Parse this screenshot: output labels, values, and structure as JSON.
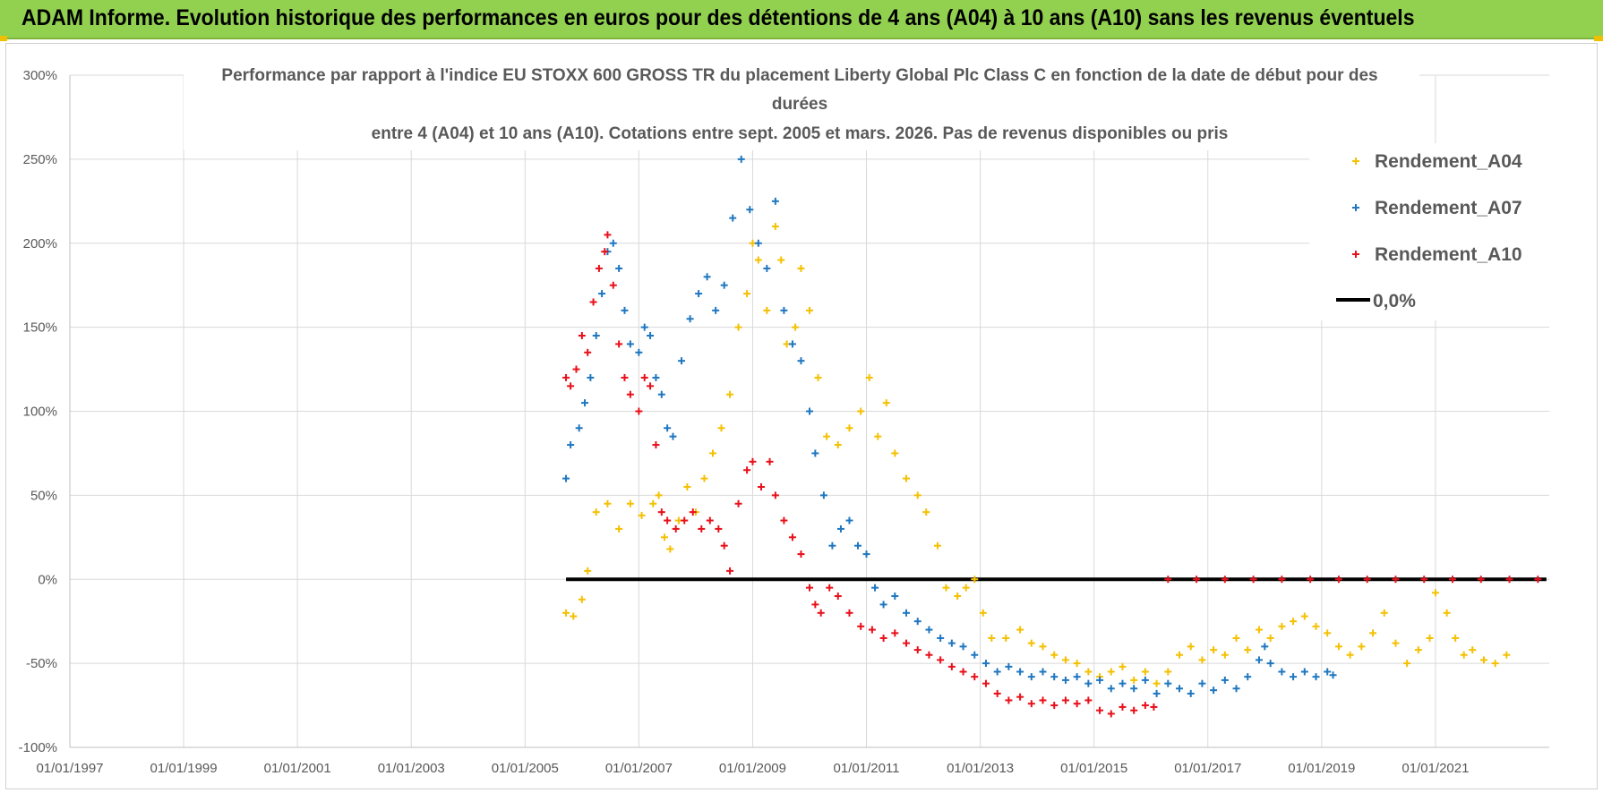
{
  "banner": {
    "text": "ADAM Informe. Evolution historique des performances en euros pour des détentions de 4 ans (A04) à 10 ans (A10) sans les revenus éventuels"
  },
  "chart_data": {
    "type": "scatter",
    "title": [
      "Performance par rapport à l'indice EU STOXX 600 GROSS TR  du placement Liberty Global Plc Class C en fonction de la date de début pour des",
      "durées",
      "entre 4 (A04) et 10 ans (A10).  Cotations entre sept. 2005 et mars. 2026.  Pas de revenus disponibles ou pris"
    ],
    "xlabel": "",
    "ylabel": "",
    "xlim": [
      1997.0,
      2023.0
    ],
    "ylim": [
      -100,
      300
    ],
    "x_ticks": [
      1997,
      1999,
      2001,
      2003,
      2005,
      2007,
      2009,
      2011,
      2013,
      2015,
      2017,
      2019,
      2021
    ],
    "x_tick_labels": [
      "01/01/1997",
      "01/01/1999",
      "01/01/2001",
      "01/01/2003",
      "01/01/2005",
      "01/01/2007",
      "01/01/2009",
      "01/01/2011",
      "01/01/2013",
      "01/01/2015",
      "01/01/2017",
      "01/01/2019",
      "01/01/2021"
    ],
    "y_ticks": [
      -100,
      -50,
      0,
      50,
      100,
      150,
      200,
      250,
      300
    ],
    "y_tick_labels": [
      "-100%",
      "-50%",
      "0%",
      "50%",
      "100%",
      "150%",
      "200%",
      "250%",
      "300%"
    ],
    "grid": true,
    "legend_position": "top-right",
    "series": [
      {
        "name": "Rendement_A04",
        "color": "#f5c000",
        "marker": "+",
        "points": [
          [
            2005.72,
            -20
          ],
          [
            2005.85,
            -22
          ],
          [
            2006.0,
            -12
          ],
          [
            2006.1,
            5
          ],
          [
            2006.25,
            40
          ],
          [
            2006.45,
            45
          ],
          [
            2006.65,
            30
          ],
          [
            2006.85,
            45
          ],
          [
            2007.05,
            38
          ],
          [
            2007.25,
            45
          ],
          [
            2007.35,
            50
          ],
          [
            2007.45,
            25
          ],
          [
            2007.55,
            18
          ],
          [
            2007.7,
            35
          ],
          [
            2007.85,
            55
          ],
          [
            2008.0,
            40
          ],
          [
            2008.15,
            60
          ],
          [
            2008.3,
            75
          ],
          [
            2008.45,
            90
          ],
          [
            2008.6,
            110
          ],
          [
            2008.75,
            150
          ],
          [
            2008.9,
            170
          ],
          [
            2009.0,
            200
          ],
          [
            2009.1,
            190
          ],
          [
            2009.25,
            160
          ],
          [
            2009.4,
            210
          ],
          [
            2009.5,
            190
          ],
          [
            2009.6,
            140
          ],
          [
            2009.75,
            150
          ],
          [
            2009.85,
            185
          ],
          [
            2010.0,
            160
          ],
          [
            2010.15,
            120
          ],
          [
            2010.3,
            85
          ],
          [
            2010.5,
            80
          ],
          [
            2010.7,
            90
          ],
          [
            2010.9,
            100
          ],
          [
            2011.05,
            120
          ],
          [
            2011.2,
            85
          ],
          [
            2011.35,
            105
          ],
          [
            2011.5,
            75
          ],
          [
            2011.7,
            60
          ],
          [
            2011.9,
            50
          ],
          [
            2012.05,
            40
          ],
          [
            2012.25,
            20
          ],
          [
            2012.4,
            -5
          ],
          [
            2012.6,
            -10
          ],
          [
            2012.75,
            -5
          ],
          [
            2012.9,
            0
          ],
          [
            2013.05,
            -20
          ],
          [
            2013.2,
            -35
          ],
          [
            2013.45,
            -35
          ],
          [
            2013.7,
            -30
          ],
          [
            2013.9,
            -38
          ],
          [
            2014.1,
            -40
          ],
          [
            2014.3,
            -45
          ],
          [
            2014.5,
            -48
          ],
          [
            2014.7,
            -50
          ],
          [
            2014.9,
            -55
          ],
          [
            2015.1,
            -58
          ],
          [
            2015.3,
            -55
          ],
          [
            2015.5,
            -52
          ],
          [
            2015.7,
            -60
          ],
          [
            2015.9,
            -55
          ],
          [
            2016.1,
            -62
          ],
          [
            2016.3,
            -55
          ],
          [
            2016.5,
            -45
          ],
          [
            2016.7,
            -40
          ],
          [
            2016.9,
            -48
          ],
          [
            2017.1,
            -42
          ],
          [
            2017.3,
            -45
          ],
          [
            2017.5,
            -35
          ],
          [
            2017.7,
            -42
          ],
          [
            2017.9,
            -30
          ],
          [
            2018.1,
            -35
          ],
          [
            2018.3,
            -28
          ],
          [
            2018.5,
            -25
          ],
          [
            2018.7,
            -22
          ],
          [
            2018.9,
            -28
          ],
          [
            2019.1,
            -32
          ],
          [
            2019.3,
            -40
          ],
          [
            2019.5,
            -45
          ],
          [
            2019.7,
            -40
          ],
          [
            2019.9,
            -32
          ],
          [
            2020.1,
            -20
          ],
          [
            2020.3,
            -38
          ],
          [
            2020.5,
            -50
          ],
          [
            2020.7,
            -42
          ],
          [
            2020.9,
            -35
          ],
          [
            2021.0,
            -8
          ],
          [
            2021.2,
            -20
          ],
          [
            2021.35,
            -35
          ],
          [
            2021.5,
            -45
          ],
          [
            2021.65,
            -42
          ],
          [
            2021.85,
            -48
          ],
          [
            2022.05,
            -50
          ],
          [
            2022.25,
            -45
          ]
        ]
      },
      {
        "name": "Rendement_A07",
        "color": "#1f77c0",
        "marker": "+",
        "points": [
          [
            2005.72,
            60
          ],
          [
            2005.8,
            80
          ],
          [
            2005.95,
            90
          ],
          [
            2006.05,
            105
          ],
          [
            2006.15,
            120
          ],
          [
            2006.25,
            145
          ],
          [
            2006.35,
            170
          ],
          [
            2006.45,
            195
          ],
          [
            2006.55,
            200
          ],
          [
            2006.65,
            185
          ],
          [
            2006.75,
            160
          ],
          [
            2006.85,
            140
          ],
          [
            2007.0,
            135
          ],
          [
            2007.1,
            150
          ],
          [
            2007.2,
            145
          ],
          [
            2007.3,
            120
          ],
          [
            2007.4,
            110
          ],
          [
            2007.5,
            90
          ],
          [
            2007.6,
            85
          ],
          [
            2007.75,
            130
          ],
          [
            2007.9,
            155
          ],
          [
            2008.05,
            170
          ],
          [
            2008.2,
            180
          ],
          [
            2008.35,
            160
          ],
          [
            2008.5,
            175
          ],
          [
            2008.65,
            215
          ],
          [
            2008.8,
            250
          ],
          [
            2008.95,
            220
          ],
          [
            2009.1,
            200
          ],
          [
            2009.25,
            185
          ],
          [
            2009.4,
            225
          ],
          [
            2009.55,
            160
          ],
          [
            2009.7,
            140
          ],
          [
            2009.85,
            130
          ],
          [
            2010.0,
            100
          ],
          [
            2010.1,
            75
          ],
          [
            2010.25,
            50
          ],
          [
            2010.4,
            20
          ],
          [
            2010.55,
            30
          ],
          [
            2010.7,
            35
          ],
          [
            2010.85,
            20
          ],
          [
            2011.0,
            15
          ],
          [
            2011.15,
            -5
          ],
          [
            2011.3,
            -15
          ],
          [
            2011.5,
            -10
          ],
          [
            2011.7,
            -20
          ],
          [
            2011.9,
            -25
          ],
          [
            2012.1,
            -30
          ],
          [
            2012.3,
            -35
          ],
          [
            2012.5,
            -38
          ],
          [
            2012.7,
            -40
          ],
          [
            2012.9,
            -45
          ],
          [
            2013.1,
            -50
          ],
          [
            2013.3,
            -55
          ],
          [
            2013.5,
            -52
          ],
          [
            2013.7,
            -55
          ],
          [
            2013.9,
            -58
          ],
          [
            2014.1,
            -55
          ],
          [
            2014.3,
            -58
          ],
          [
            2014.5,
            -60
          ],
          [
            2014.7,
            -58
          ],
          [
            2014.9,
            -62
          ],
          [
            2015.1,
            -60
          ],
          [
            2015.3,
            -65
          ],
          [
            2015.5,
            -62
          ],
          [
            2015.7,
            -65
          ],
          [
            2015.9,
            -60
          ],
          [
            2016.1,
            -68
          ],
          [
            2016.3,
            -62
          ],
          [
            2016.5,
            -65
          ],
          [
            2016.7,
            -68
          ],
          [
            2016.9,
            -62
          ],
          [
            2017.1,
            -66
          ],
          [
            2017.3,
            -60
          ],
          [
            2017.5,
            -65
          ],
          [
            2017.7,
            -58
          ],
          [
            2017.9,
            -48
          ],
          [
            2018.0,
            -40
          ],
          [
            2018.1,
            -50
          ],
          [
            2018.3,
            -55
          ],
          [
            2018.5,
            -58
          ],
          [
            2018.7,
            -55
          ],
          [
            2018.9,
            -58
          ],
          [
            2019.1,
            -55
          ],
          [
            2019.2,
            -57
          ]
        ]
      },
      {
        "name": "Rendement_A10",
        "color": "#e8101a",
        "marker": "+",
        "points": [
          [
            2005.72,
            120
          ],
          [
            2005.8,
            115
          ],
          [
            2005.9,
            125
          ],
          [
            2006.0,
            145
          ],
          [
            2006.1,
            135
          ],
          [
            2006.2,
            165
          ],
          [
            2006.3,
            185
          ],
          [
            2006.4,
            195
          ],
          [
            2006.45,
            205
          ],
          [
            2006.55,
            175
          ],
          [
            2006.65,
            140
          ],
          [
            2006.75,
            120
          ],
          [
            2006.85,
            110
          ],
          [
            2007.0,
            100
          ],
          [
            2007.1,
            120
          ],
          [
            2007.2,
            115
          ],
          [
            2007.3,
            80
          ],
          [
            2007.4,
            40
          ],
          [
            2007.5,
            35
          ],
          [
            2007.65,
            30
          ],
          [
            2007.8,
            35
          ],
          [
            2007.95,
            40
          ],
          [
            2008.1,
            30
          ],
          [
            2008.25,
            35
          ],
          [
            2008.4,
            30
          ],
          [
            2008.5,
            20
          ],
          [
            2008.6,
            5
          ],
          [
            2008.75,
            45
          ],
          [
            2008.9,
            65
          ],
          [
            2009.0,
            70
          ],
          [
            2009.15,
            55
          ],
          [
            2009.3,
            70
          ],
          [
            2009.4,
            50
          ],
          [
            2009.55,
            35
          ],
          [
            2009.7,
            25
          ],
          [
            2009.85,
            15
          ],
          [
            2010.0,
            -5
          ],
          [
            2010.1,
            -15
          ],
          [
            2010.2,
            -20
          ],
          [
            2010.35,
            -5
          ],
          [
            2010.5,
            -10
          ],
          [
            2010.7,
            -20
          ],
          [
            2010.9,
            -28
          ],
          [
            2011.1,
            -30
          ],
          [
            2011.3,
            -35
          ],
          [
            2011.5,
            -32
          ],
          [
            2011.7,
            -38
          ],
          [
            2011.9,
            -42
          ],
          [
            2012.1,
            -45
          ],
          [
            2012.3,
            -48
          ],
          [
            2012.5,
            -52
          ],
          [
            2012.7,
            -55
          ],
          [
            2012.9,
            -58
          ],
          [
            2013.1,
            -62
          ],
          [
            2013.3,
            -68
          ],
          [
            2013.5,
            -72
          ],
          [
            2013.7,
            -70
          ],
          [
            2013.9,
            -74
          ],
          [
            2014.1,
            -72
          ],
          [
            2014.3,
            -75
          ],
          [
            2014.5,
            -72
          ],
          [
            2014.7,
            -74
          ],
          [
            2014.9,
            -72
          ],
          [
            2015.1,
            -78
          ],
          [
            2015.3,
            -80
          ],
          [
            2015.5,
            -76
          ],
          [
            2015.7,
            -78
          ],
          [
            2015.9,
            -75
          ],
          [
            2016.05,
            -76
          ],
          [
            2016.3,
            0
          ],
          [
            2016.8,
            0
          ],
          [
            2017.3,
            0
          ],
          [
            2017.8,
            0
          ],
          [
            2018.3,
            0
          ],
          [
            2018.8,
            0
          ],
          [
            2019.3,
            0
          ],
          [
            2019.8,
            0
          ],
          [
            2020.3,
            0
          ],
          [
            2020.8,
            0
          ],
          [
            2021.3,
            0
          ],
          [
            2021.8,
            0
          ],
          [
            2022.3,
            0
          ],
          [
            2022.8,
            0
          ]
        ]
      },
      {
        "name": "0,0%",
        "color": "#000000",
        "type": "line",
        "points": [
          [
            2005.72,
            0
          ],
          [
            2022.95,
            0
          ]
        ]
      }
    ]
  }
}
